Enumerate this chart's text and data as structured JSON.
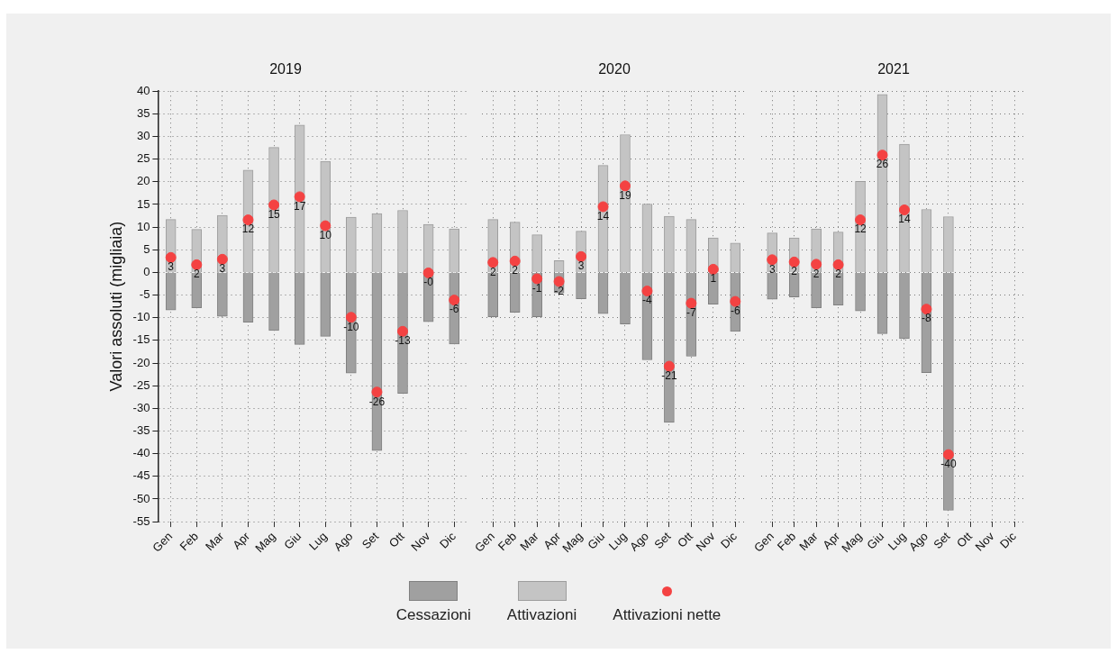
{
  "chart_data": [
    {
      "type": "bar",
      "title": "2019",
      "ylabel": "Valori assoluti (migliaia)",
      "categories": [
        "Gen",
        "Feb",
        "Mar",
        "Apr",
        "Mag",
        "Giu",
        "Lug",
        "Ago",
        "Set",
        "Ott",
        "Nov",
        "Dic"
      ],
      "stacked": true,
      "ylim": [
        -55,
        40
      ],
      "yticks": [
        -55,
        -50,
        -45,
        -40,
        -35,
        -30,
        -25,
        -20,
        -15,
        -10,
        -5,
        0,
        5,
        10,
        15,
        20,
        25,
        30,
        35,
        40
      ],
      "grid": true,
      "legend": "bottom",
      "marker": "circle",
      "series": [
        {
          "name": "Cessazioni",
          "color": "#a0a0a0",
          "values": [
            -8.3,
            -7.8,
            -9.7,
            -11.0,
            -12.8,
            -15.9,
            -14.1,
            -22.2,
            -39.3,
            -26.7,
            -10.9,
            -15.8
          ]
        },
        {
          "name": "Attivazioni",
          "color": "#c4c4c4",
          "values": [
            11.7,
            9.5,
            12.6,
            22.6,
            27.6,
            32.5,
            24.5,
            12.2,
            13.0,
            13.7,
            10.6,
            9.6
          ]
        },
        {
          "name": "Attivazioni nette",
          "type": "scatter",
          "color": "#f44242",
          "values": [
            3.3,
            1.7,
            2.9,
            11.6,
            14.9,
            16.7,
            10.3,
            -9.9,
            -26.4,
            -13.0,
            -0.1,
            -6.1
          ],
          "value_labels": [
            "3",
            "2",
            "3",
            "12",
            "15",
            "17",
            "10",
            "-10",
            "-26",
            "-13",
            "-0",
            "-6"
          ]
        }
      ]
    },
    {
      "type": "bar",
      "title": "2020",
      "categories": [
        "Gen",
        "Feb",
        "Mar",
        "Apr",
        "Mag",
        "Giu",
        "Lug",
        "Ago",
        "Set",
        "Ott",
        "Nov",
        "Dic"
      ],
      "stacked": true,
      "ylim": [
        -55,
        40
      ],
      "yticks": [
        -55,
        -50,
        -45,
        -40,
        -35,
        -30,
        -25,
        -20,
        -15,
        -10,
        -5,
        0,
        5,
        10,
        15,
        20,
        25,
        30,
        35,
        40
      ],
      "grid": true,
      "tick_labels": "x",
      "marker": "circle",
      "series": [
        {
          "color": "#a0a0a0",
          "values": [
            -9.8,
            -8.8,
            -9.8,
            -4.5,
            -5.8,
            -9.1,
            -11.4,
            -19.3,
            -33.1,
            -18.5,
            -7.0,
            -13.0
          ]
        },
        {
          "color": "#c4c4c4",
          "values": [
            11.7,
            11.1,
            8.3,
            2.6,
            9.1,
            23.6,
            30.4,
            15.1,
            12.4,
            11.7,
            7.6,
            6.5
          ]
        },
        {
          "type": "scatter",
          "color": "#f44242",
          "values": [
            2.2,
            2.5,
            -1.4,
            -2.0,
            3.5,
            14.5,
            19.1,
            -4.1,
            -20.7,
            -6.8,
            0.7,
            -6.4
          ],
          "value_labels": [
            "2",
            "2",
            "-1",
            "-2",
            "3",
            "14",
            "19",
            "-4",
            "-21",
            "-7",
            "1",
            "-6"
          ]
        }
      ]
    },
    {
      "type": "bar",
      "title": "2021",
      "categories": [
        "Gen",
        "Feb",
        "Mar",
        "Apr",
        "Mag",
        "Giu",
        "Lug",
        "Ago",
        "Set",
        "Ott",
        "Nov",
        "Dic"
      ],
      "stacked": true,
      "ylim": [
        -55,
        40
      ],
      "yticks": [
        -55,
        -50,
        -45,
        -40,
        -35,
        -30,
        -25,
        -20,
        -15,
        -10,
        -5,
        0,
        5,
        10,
        15,
        20,
        25,
        30,
        35,
        40
      ],
      "grid": true,
      "tick_labels": "x",
      "marker": "circle",
      "series": [
        {
          "color": "#a0a0a0",
          "values": [
            -5.9,
            -5.4,
            -7.8,
            -7.2,
            -8.5,
            -13.5,
            -14.6,
            -22.1,
            -52.5,
            null,
            null,
            null
          ]
        },
        {
          "color": "#c4c4c4",
          "values": [
            8.7,
            7.6,
            9.6,
            8.9,
            20.1,
            39.3,
            28.3,
            13.9,
            12.3,
            null,
            null,
            null
          ]
        },
        {
          "type": "scatter",
          "color": "#f44242",
          "values": [
            2.8,
            2.3,
            1.8,
            1.7,
            11.6,
            25.9,
            13.8,
            -8.1,
            -40.2,
            null,
            null,
            null
          ],
          "value_labels": [
            "3",
            "2",
            "2",
            "2",
            "12",
            "26",
            "14",
            "-8",
            "-40",
            null,
            null,
            null
          ]
        }
      ]
    }
  ]
}
